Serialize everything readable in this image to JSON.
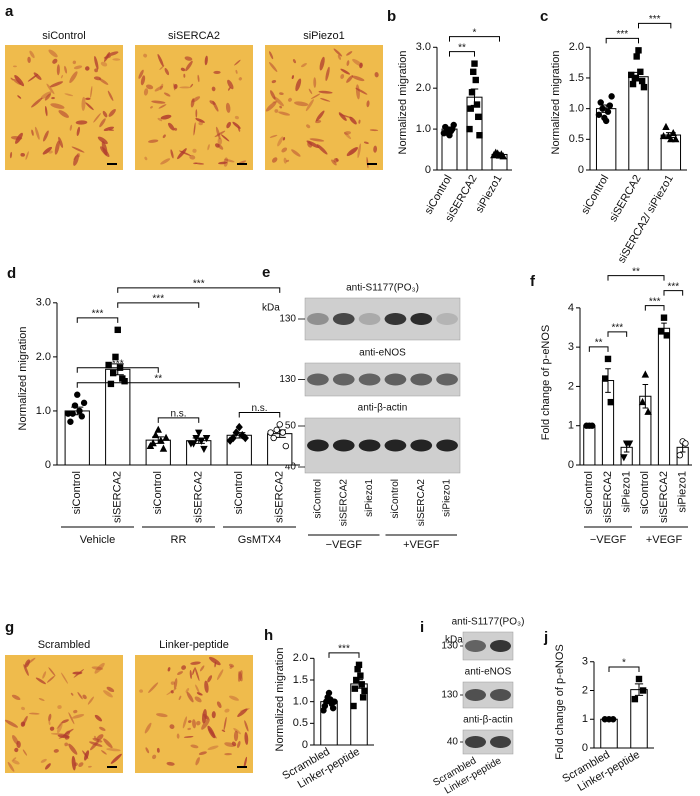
{
  "micrographs": [
    {
      "panel": "a",
      "labels": [
        "siControl",
        "siSERCA2",
        "siPiezo1"
      ]
    },
    {
      "panel": "g",
      "labels": [
        "Scrambled",
        "Linker-peptide"
      ]
    }
  ],
  "blots": [
    {
      "panel": "e",
      "unit": "kDa",
      "rows": [
        {
          "label": "anti-S1177(PO₃)",
          "markers": [
            130
          ]
        },
        {
          "label": "anti-eNOS",
          "markers": [
            130
          ]
        },
        {
          "label": "anti-β-actin",
          "markers": [
            50,
            40
          ]
        }
      ],
      "lanes": [
        "siControl",
        "siSERCA2",
        "siPiezo1",
        "siControl",
        "siSERCA2",
        "siPiezo1"
      ],
      "groups": [
        "−VEGF",
        "+VEGF"
      ]
    },
    {
      "panel": "i",
      "unit": "kDa",
      "rows": [
        {
          "label": "anti-S1177(PO₃)",
          "markers": [
            130
          ]
        },
        {
          "label": "anti-eNOS",
          "markers": [
            130
          ]
        },
        {
          "label": "anti-β-actin",
          "markers": [
            40
          ]
        }
      ],
      "lanes": [
        "Scrambled",
        "Linker-peptide"
      ]
    }
  ],
  "chart_data": [
    {
      "panel": "b",
      "type": "bar",
      "ylabel": "Normalized migration",
      "categories": [
        "siControl",
        "siSERCA2",
        "siPiezo1"
      ],
      "values": [
        1.0,
        1.78,
        0.38
      ],
      "errors": [
        0.05,
        0.2,
        0.03
      ],
      "points": [
        [
          0.85,
          0.9,
          0.95,
          1.0,
          1.0,
          1.05,
          1.1,
          0.9
        ],
        [
          2.6,
          2.4,
          2.2,
          1.9,
          1.6,
          1.5,
          1.3,
          1.0,
          0.85
        ],
        [
          0.35,
          0.4,
          0.38,
          0.42,
          0.33,
          0.36
        ]
      ],
      "markers": [
        "circle",
        "square",
        "triangle"
      ],
      "ylim": [
        0,
        3.3
      ],
      "yticks": [
        0,
        {
          "value": 1,
          "label": "1.0"
        },
        {
          "value": 2,
          "label": "2.0"
        },
        {
          "value": 3,
          "label": "3.0"
        }
      ],
      "brackets": [
        {
          "pair": [
            0,
            1
          ],
          "label": "**"
        },
        {
          "pair": [
            0,
            2
          ],
          "label": "*"
        }
      ]
    },
    {
      "panel": "c",
      "type": "bar",
      "ylabel": "Normalized migration",
      "categories": [
        "siControl",
        "siSERCA2",
        "siSERCA2/ siPiezo1"
      ],
      "values": [
        1.0,
        1.52,
        0.57
      ],
      "errors": [
        0.06,
        0.07,
        0.04
      ],
      "points": [
        [
          0.8,
          0.85,
          0.95,
          1.0,
          1.05,
          1.1,
          1.2,
          0.9
        ],
        [
          1.95,
          1.85,
          1.6,
          1.5,
          1.45,
          1.4,
          1.35,
          1.55
        ],
        [
          0.5,
          0.55,
          0.6,
          0.7,
          0.5,
          0.55
        ]
      ],
      "markers": [
        "circle",
        "square",
        "triangle"
      ],
      "ylim": [
        0,
        2.2
      ],
      "yticks": [
        0,
        0.5,
        {
          "value": 1,
          "label": "1.0"
        },
        1.5,
        {
          "value": 2,
          "label": "2.0"
        }
      ],
      "brackets": [
        {
          "pair": [
            0,
            1
          ],
          "label": "***"
        },
        {
          "pair": [
            1,
            2
          ],
          "label": "***"
        }
      ]
    },
    {
      "panel": "d",
      "type": "bar",
      "ylabel": "Normalized migration",
      "categories": [
        "siControl",
        "siSERCA2",
        "siControl",
        "siSERCA2",
        "siControl",
        "siSERCA2"
      ],
      "group_labels": [
        "Vehicle",
        "RR",
        "GsMTX4"
      ],
      "values": [
        1.0,
        1.77,
        0.46,
        0.45,
        0.55,
        0.58
      ],
      "errors": [
        0.07,
        0.1,
        0.06,
        0.05,
        0.05,
        0.07
      ],
      "points": [
        [
          1.3,
          1.1,
          1.0,
          0.95,
          0.9,
          0.8,
          1.15,
          0.95
        ],
        [
          2.5,
          2.0,
          1.8,
          1.7,
          1.6,
          1.5,
          1.55,
          1.85
        ],
        [
          0.65,
          0.55,
          0.45,
          0.4,
          0.3,
          0.35,
          0.5
        ],
        [
          0.6,
          0.5,
          0.45,
          0.4,
          0.3,
          0.4,
          0.5
        ],
        [
          0.7,
          0.6,
          0.55,
          0.5,
          0.5,
          0.45
        ],
        [
          0.75,
          0.65,
          0.6,
          0.5,
          0.35,
          0.6
        ]
      ],
      "markers": [
        "circle",
        "square",
        "triangle",
        "triangle-down",
        "diamond",
        "open-circle"
      ],
      "ylim": [
        0,
        3.2
      ],
      "yticks": [
        0,
        {
          "value": 1,
          "label": "1.0"
        },
        {
          "value": 2,
          "label": "2.0"
        },
        {
          "value": 3,
          "label": "3.0"
        }
      ],
      "brackets": [
        {
          "pair": [
            2,
            3
          ],
          "label": "n.s."
        },
        {
          "pair": [
            4,
            5
          ],
          "label": "n.s."
        },
        {
          "pair": [
            0,
            4
          ],
          "label": "**"
        },
        {
          "pair": [
            0,
            2
          ],
          "label": "***"
        },
        {
          "pair": [
            0,
            1
          ],
          "label": "***"
        },
        {
          "pair": [
            1,
            3
          ],
          "label": "***"
        },
        {
          "pair": [
            1,
            5
          ],
          "label": "***"
        }
      ]
    },
    {
      "panel": "f",
      "type": "bar",
      "ylabel": "Fold change of p-eNOS",
      "categories": [
        "siControl",
        "siSERCA2",
        "siPiezo1",
        "siControl",
        "siSERCA2",
        "siPiezo1"
      ],
      "group_labels": [
        "−VEGF",
        "+VEGF"
      ],
      "values": [
        1.0,
        2.15,
        0.45,
        1.75,
        3.48,
        0.45
      ],
      "errors": [
        0.02,
        0.3,
        0.12,
        0.3,
        0.13,
        0.12
      ],
      "points": [
        [
          1.0,
          1.0,
          1.0
        ],
        [
          2.7,
          2.2,
          1.6
        ],
        [
          0.55,
          0.2,
          0.55
        ],
        [
          2.3,
          1.6,
          1.35
        ],
        [
          3.75,
          3.4,
          3.3
        ],
        [
          0.6,
          0.25,
          0.55
        ]
      ],
      "markers": [
        "circle",
        "square",
        "triangle-down",
        "triangle",
        "square",
        "open-circle"
      ],
      "ylim": [
        0,
        4.2
      ],
      "yticks": [
        0,
        1,
        2,
        3,
        4
      ],
      "brackets": [
        {
          "pair": [
            0,
            1
          ],
          "label": "**"
        },
        {
          "pair": [
            1,
            2
          ],
          "label": "***"
        },
        {
          "pair": [
            3,
            4
          ],
          "label": "***"
        },
        {
          "pair": [
            4,
            5
          ],
          "label": "***"
        },
        {
          "pair": [
            1,
            4
          ],
          "label": "**"
        }
      ]
    },
    {
      "panel": "h",
      "type": "bar",
      "ylabel": "Normalized migration",
      "categories": [
        "Scrambled",
        "Linker-peptide"
      ],
      "values": [
        1.0,
        1.41
      ],
      "errors": [
        0.04,
        0.1
      ],
      "points": [
        [
          1.2,
          1.1,
          1.05,
          1.0,
          0.95,
          0.9,
          0.85,
          0.8,
          1.0
        ],
        [
          1.85,
          1.75,
          1.6,
          1.5,
          1.4,
          1.3,
          1.1,
          0.9,
          1.25
        ]
      ],
      "markers": [
        "circle",
        "square"
      ],
      "ylim": [
        0,
        2.1
      ],
      "yticks": [
        0,
        0.5,
        {
          "value": 1,
          "label": "1.0"
        },
        1.5,
        {
          "value": 2,
          "label": "2.0"
        }
      ],
      "brackets": [
        {
          "pair": [
            0,
            1
          ],
          "label": "***"
        }
      ]
    },
    {
      "panel": "j",
      "type": "bar",
      "ylabel": "Fold change of p-eNOS",
      "categories": [
        "Scrambled",
        "Linker-peptide"
      ],
      "values": [
        1.0,
        2.03
      ],
      "errors": [
        0.01,
        0.2
      ],
      "points": [
        [
          1.0,
          1.0,
          1.0
        ],
        [
          2.4,
          1.7,
          2.0
        ]
      ],
      "markers": [
        "circle",
        "square"
      ],
      "ylim": [
        0,
        3.2
      ],
      "yticks": [
        0,
        1,
        2,
        3
      ],
      "brackets": [
        {
          "pair": [
            0,
            1
          ],
          "label": "*"
        }
      ]
    }
  ]
}
